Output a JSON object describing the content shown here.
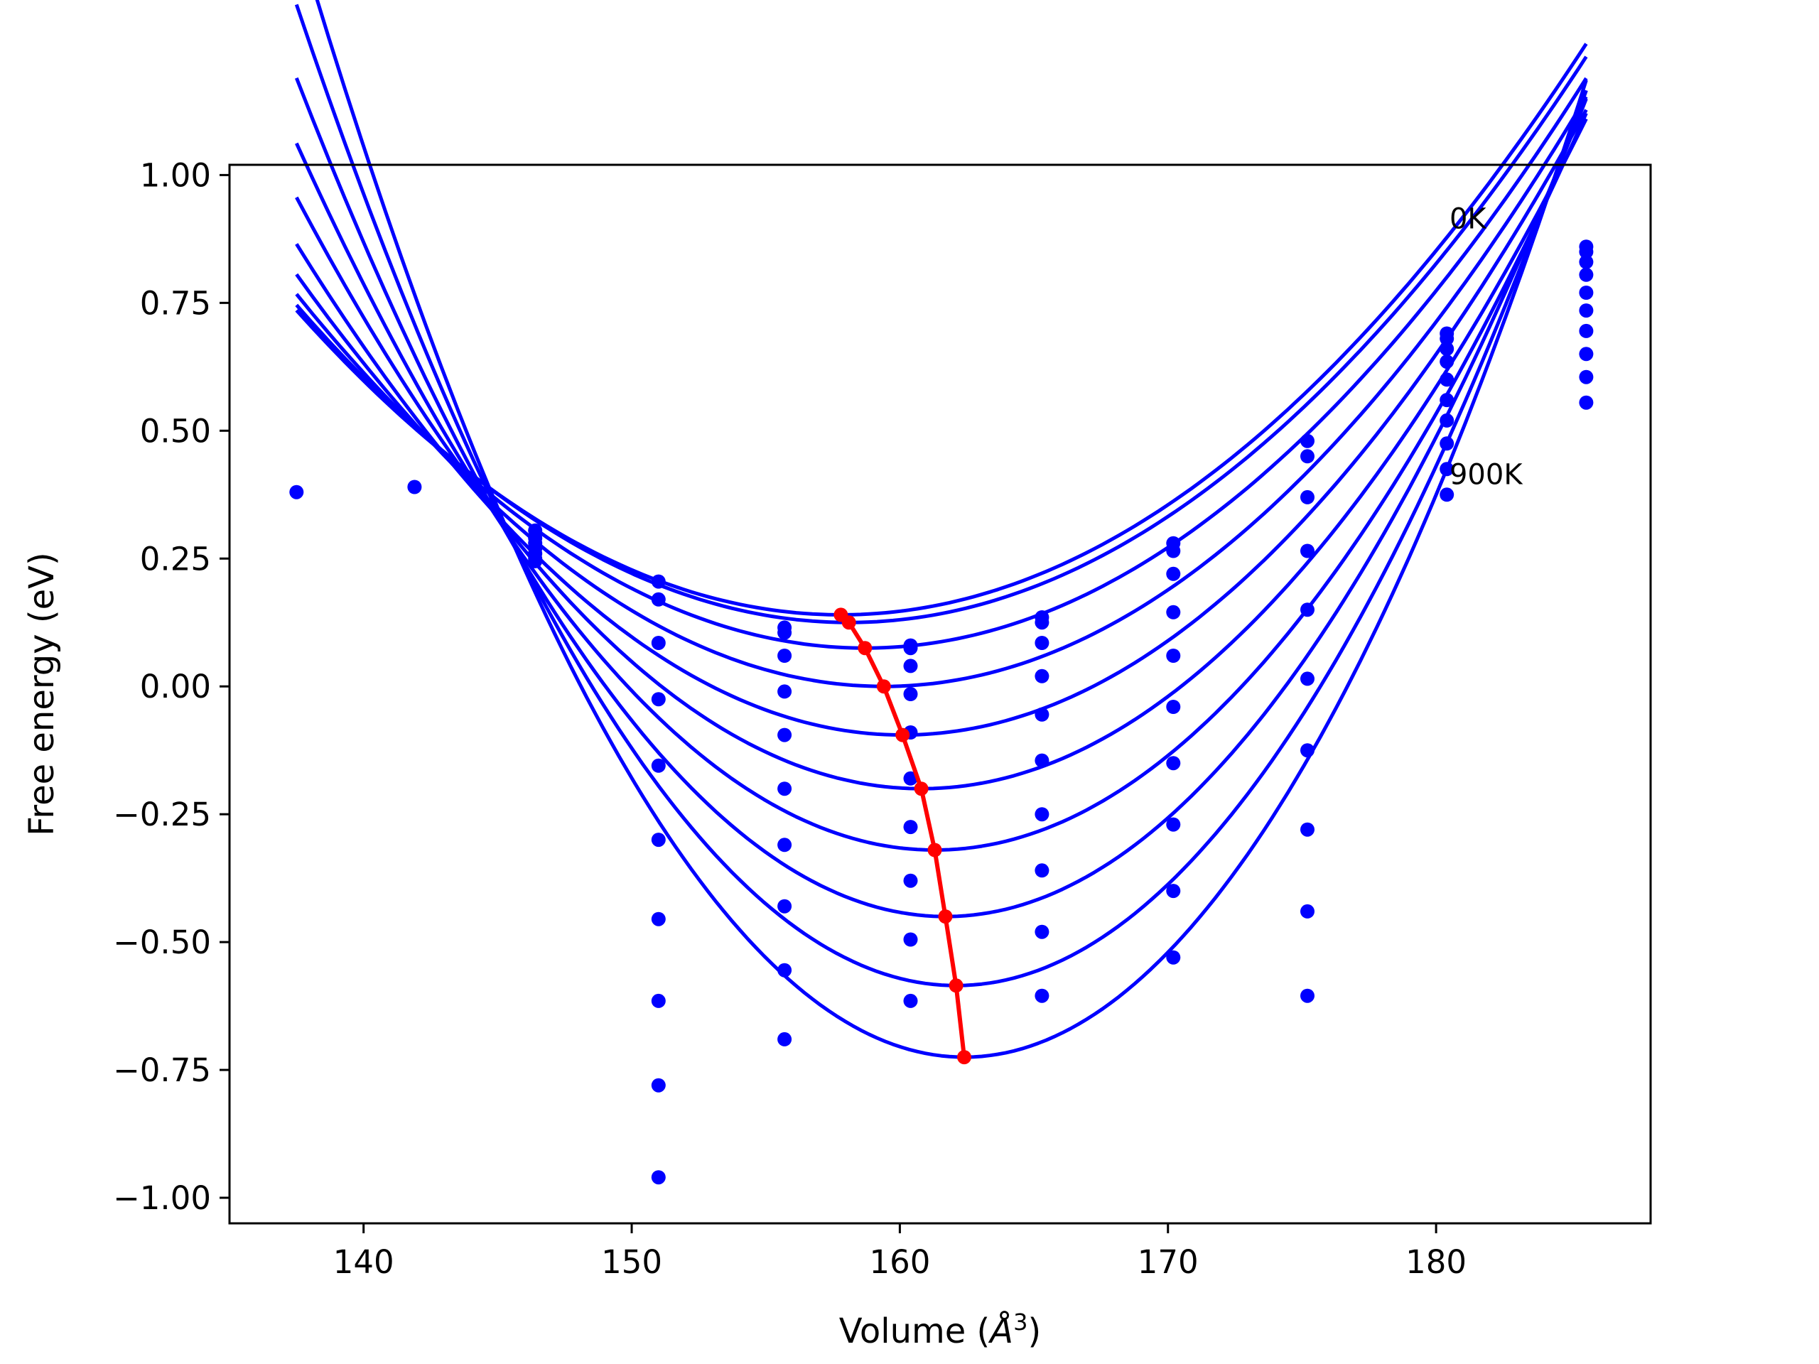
{
  "chart_data": {
    "type": "line",
    "title": "",
    "xlabel": "Volume (Å³)",
    "xlabel_parts": {
      "text": "Volume (",
      "italic": "Å",
      "sup": "3",
      "close": ")"
    },
    "ylabel": "Free energy (eV)",
    "xlim": [
      135.0,
      188.0
    ],
    "ylim": [
      -1.05,
      1.02
    ],
    "xticks": [
      140,
      150,
      160,
      170,
      180
    ],
    "xtick_labels": [
      "140",
      "150",
      "160",
      "170",
      "180"
    ],
    "yticks": [
      1.0,
      0.75,
      0.5,
      0.25,
      0.0,
      -0.25,
      -0.5,
      -0.75,
      -1.0
    ],
    "ytick_labels": [
      "1.00",
      "0.75",
      "0.50",
      "0.25",
      "0.00",
      "−0.25",
      "−0.50",
      "−0.75",
      "−1.00"
    ],
    "grid": false,
    "legend": null,
    "colors": {
      "curves": "#0000ff",
      "points": "#0000ff",
      "minimum_line": "#ff0000",
      "axes": "#000000"
    },
    "annotations": [
      {
        "text": "0K",
        "x": 180.5,
        "y": 0.915
      },
      {
        "text": "900K",
        "x": 180.5,
        "y": 0.415
      }
    ],
    "volumes": [
      137.5,
      141.9,
      146.4,
      151.0,
      155.7,
      160.4,
      165.3,
      170.2,
      175.2,
      180.4,
      185.6
    ],
    "fit_range": [
      137.5,
      185.6
    ],
    "fitted_curves": [
      {
        "minimum_volume": 157.8,
        "minimum_energy": 0.14,
        "curvature": 0.001445
      },
      {
        "minimum_volume": 158.1,
        "minimum_energy": 0.125,
        "curvature": 0.001463
      },
      {
        "minimum_volume": 158.7,
        "minimum_energy": 0.075,
        "curvature": 0.00154
      },
      {
        "minimum_volume": 159.4,
        "minimum_energy": 0.0,
        "curvature": 0.00168
      },
      {
        "minimum_volume": 160.1,
        "minimum_energy": -0.095,
        "curvature": 0.00188
      },
      {
        "minimum_volume": 160.8,
        "minimum_energy": -0.2,
        "curvature": 0.00213
      },
      {
        "minimum_volume": 161.3,
        "minimum_energy": -0.32,
        "curvature": 0.00244
      },
      {
        "minimum_volume": 161.7,
        "minimum_energy": -0.45,
        "curvature": 0.0028
      },
      {
        "minimum_volume": 162.1,
        "minimum_energy": -0.585,
        "curvature": 0.00317
      },
      {
        "minimum_volume": 162.4,
        "minimum_energy": -0.725,
        "curvature": 0.00355
      }
    ],
    "computed_points": [
      {
        "volume": 137.5,
        "energies": [
          0.38
        ]
      },
      {
        "volume": 141.9,
        "energies": [
          0.39
        ]
      },
      {
        "volume": 146.4,
        "energies": [
          0.305,
          0.29,
          0.28,
          0.27,
          0.26,
          0.25,
          0.245
        ]
      },
      {
        "volume": 151.0,
        "energies": [
          0.205,
          0.17,
          0.085,
          -0.025,
          -0.155,
          -0.3,
          -0.455,
          -0.615,
          -0.78,
          -0.96
        ]
      },
      {
        "volume": 155.7,
        "energies": [
          0.115,
          0.105,
          0.06,
          -0.01,
          -0.095,
          -0.2,
          -0.31,
          -0.43,
          -0.555,
          -0.69
        ]
      },
      {
        "volume": 160.4,
        "energies": [
          0.08,
          0.075,
          0.04,
          -0.015,
          -0.09,
          -0.18,
          -0.275,
          -0.38,
          -0.495,
          -0.615
        ]
      },
      {
        "volume": 165.3,
        "energies": [
          0.135,
          0.125,
          0.085,
          0.02,
          -0.055,
          -0.145,
          -0.25,
          -0.36,
          -0.48,
          -0.605
        ]
      },
      {
        "volume": 170.2,
        "energies": [
          0.28,
          0.265,
          0.22,
          0.145,
          0.06,
          -0.04,
          -0.15,
          -0.27,
          -0.4,
          -0.53
        ]
      },
      {
        "volume": 175.2,
        "energies": [
          0.48,
          0.45,
          0.37,
          0.265,
          0.15,
          0.015,
          -0.125,
          -0.28,
          -0.44,
          -0.605
        ]
      },
      {
        "volume": 180.4,
        "energies": [
          0.69,
          0.68,
          0.66,
          0.635,
          0.6,
          0.56,
          0.52,
          0.475,
          0.425,
          0.375
        ]
      },
      {
        "volume": 185.6,
        "energies": [
          0.86,
          0.85,
          0.83,
          0.805,
          0.77,
          0.735,
          0.695,
          0.65,
          0.605,
          0.555
        ]
      }
    ],
    "minima_series": {
      "volumes": [
        157.8,
        158.1,
        158.7,
        159.4,
        160.1,
        160.8,
        161.3,
        161.7,
        162.1,
        162.4
      ],
      "energies": [
        0.14,
        0.125,
        0.075,
        0.0,
        -0.095,
        -0.2,
        -0.32,
        -0.45,
        -0.585,
        -0.725
      ]
    }
  }
}
